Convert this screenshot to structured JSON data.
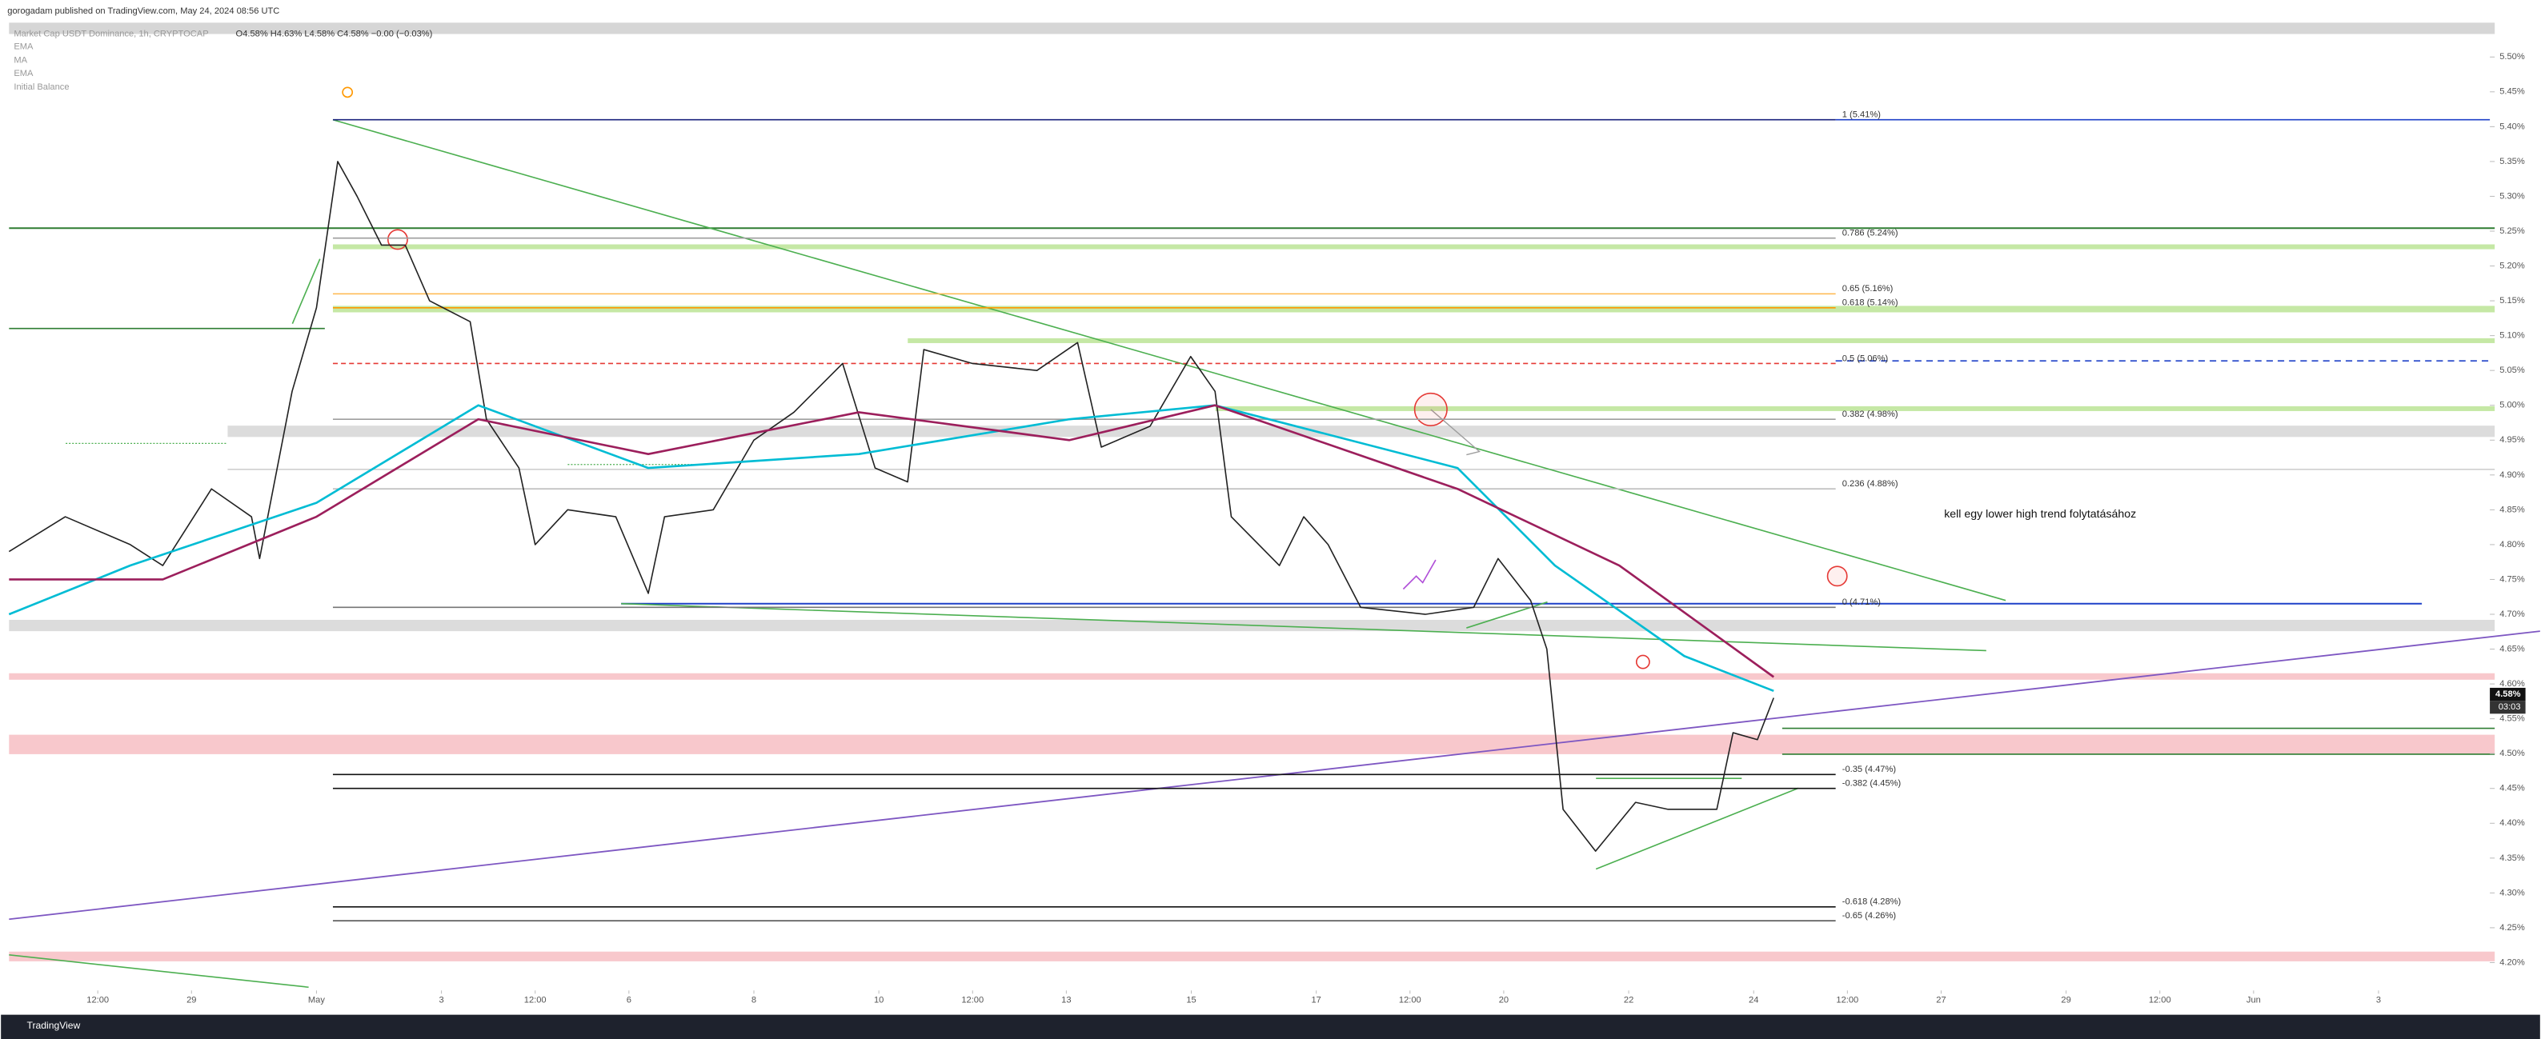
{
  "chart_data": {
    "type": "line",
    "attribution": "gorogadam published on TradingView.com, May 24, 2024 08:56 UTC",
    "title": "Market Cap USDT Dominance, 1h, CRYPTOCAP",
    "ohlc": "O4.58% H4.63% L4.58% C4.58% −0.00 (−0.03%)",
    "legend_items": [
      "EMA",
      "MA",
      "EMA",
      "Initial Balance"
    ],
    "annotation": "kell egy lower high trend folytatásához",
    "last_price_label": "4.58%",
    "countdown": "03:03",
    "footer": "TradingView",
    "series": [
      {
        "color": "#222222",
        "x": [
          -4.92,
          -4.02,
          -2.98,
          -2.46,
          -1.68,
          -1.04,
          -0.91,
          -0.39,
          0,
          0.34,
          0.65,
          1.04,
          1.42,
          1.81,
          2.46,
          2.72,
          3.24,
          3.5,
          4.02,
          4.79,
          5.31,
          5.57,
          6.35,
          7,
          7.64,
          8.42,
          8.94,
          9.46,
          9.72,
          10.5,
          11.53,
          12.18,
          12.56,
          13.34,
          13.99,
          14.38,
          14.64,
          15.41,
          15.8,
          16.19,
          16.71,
          17.75,
          18.52,
          18.91,
          19.43,
          19.69,
          19.95,
          20.47,
          21.11,
          21.63,
          22.41,
          22.67,
          23.06,
          23.32
        ],
        "values": [
          4.79,
          4.84,
          4.8,
          4.77,
          4.88,
          4.84,
          4.78,
          5.02,
          5.14,
          5.35,
          5.3,
          5.23,
          5.23,
          5.15,
          5.12,
          4.98,
          4.91,
          4.8,
          4.85,
          4.84,
          4.73,
          4.84,
          4.85,
          4.95,
          4.99,
          5.06,
          4.91,
          4.89,
          5.08,
          5.06,
          5.05,
          5.09,
          4.94,
          4.97,
          5.07,
          5.02,
          4.84,
          4.77,
          4.84,
          4.8,
          4.71,
          4.7,
          4.71,
          4.78,
          4.72,
          4.65,
          4.42,
          4.36,
          4.43,
          4.42,
          4.42,
          4.53,
          4.52,
          4.58
        ]
      },
      {
        "color": "#00bcd4",
        "x": [
          -4.92,
          -2.98,
          0,
          2.59,
          5.31,
          8.68,
          12.05,
          14.38,
          18.26,
          19.82,
          21.89,
          23.32
        ],
        "values": [
          4.7,
          4.77,
          4.86,
          5.0,
          4.91,
          4.93,
          4.98,
          5.0,
          4.91,
          4.77,
          4.64,
          4.59
        ]
      },
      {
        "color": "#9c1f5c",
        "x": [
          -4.92,
          -2.46,
          0,
          2.59,
          5.31,
          8.68,
          12.05,
          14.38,
          18.26,
          20.85,
          23.32
        ],
        "values": [
          4.75,
          4.75,
          4.84,
          4.98,
          4.93,
          4.99,
          4.95,
          5.0,
          4.88,
          4.77,
          4.61
        ]
      }
    ],
    "fib_levels": [
      {
        "label": "1 (5.41%)",
        "value": 5.41,
        "color": "#1a237e"
      },
      {
        "label": "0.786 (5.24%)",
        "value": 5.24,
        "color": "#9e9e9e"
      },
      {
        "label": "0.65 (5.16%)",
        "value": 5.16,
        "color": "#ffb74d"
      },
      {
        "label": "0.618 (5.14%)",
        "value": 5.14,
        "color": "#ff9800"
      },
      {
        "label": "0.5 (5.06%)",
        "value": 5.06,
        "color": "#e53935"
      },
      {
        "label": "0.382 (4.98%)",
        "value": 4.98,
        "color": "#9e9e9e"
      },
      {
        "label": "0.236 (4.88%)",
        "value": 4.88,
        "color": "#bdbdbd"
      },
      {
        "label": "0 (4.71%)",
        "value": 4.71,
        "color": "#757575"
      },
      {
        "label": "-0.35 (4.47%)",
        "value": 4.47,
        "color": "#111111"
      },
      {
        "label": "-0.382 (4.45%)",
        "value": 4.45,
        "color": "#111111"
      },
      {
        "label": "-0.618 (4.28%)",
        "value": 4.28,
        "color": "#111111"
      },
      {
        "label": "-0.65 (4.26%)",
        "value": 4.26,
        "color": "#555555"
      }
    ],
    "xlim": [
      -4.92,
      34.6
    ],
    "xticks": [
      {
        "value": -3.5,
        "label": "12:00"
      },
      {
        "value": -2,
        "label": "29"
      },
      {
        "value": 0,
        "label": "May"
      },
      {
        "value": 2,
        "label": "3"
      },
      {
        "value": 3.5,
        "label": "12:00"
      },
      {
        "value": 5,
        "label": "6"
      },
      {
        "value": 7,
        "label": "8"
      },
      {
        "value": 9,
        "label": "10"
      },
      {
        "value": 10.5,
        "label": "12:00"
      },
      {
        "value": 12,
        "label": "13"
      },
      {
        "value": 14,
        "label": "15"
      },
      {
        "value": 16,
        "label": "17"
      },
      {
        "value": 17.5,
        "label": "12:00"
      },
      {
        "value": 19,
        "label": "20"
      },
      {
        "value": 21,
        "label": "22"
      },
      {
        "value": 23,
        "label": "24"
      },
      {
        "value": 24.5,
        "label": "12:00"
      },
      {
        "value": 26,
        "label": "27"
      },
      {
        "value": 28,
        "label": "29"
      },
      {
        "value": 29.5,
        "label": "12:00"
      },
      {
        "value": 31,
        "label": "Jun"
      },
      {
        "value": 33,
        "label": "3"
      }
    ],
    "ylim": [
      4.16,
      5.54
    ],
    "yticks": [
      {
        "value": 4.2,
        "label": "4.20%"
      },
      {
        "value": 4.25,
        "label": "4.25%"
      },
      {
        "value": 4.3,
        "label": "4.30%"
      },
      {
        "value": 4.35,
        "label": "4.35%"
      },
      {
        "value": 4.4,
        "label": "4.40%"
      },
      {
        "value": 4.45,
        "label": "4.45%"
      },
      {
        "value": 4.5,
        "label": "4.50%"
      },
      {
        "value": 4.55,
        "label": "4.55%"
      },
      {
        "value": 4.6,
        "label": "4.60%"
      },
      {
        "value": 4.65,
        "label": "4.65%"
      },
      {
        "value": 4.7,
        "label": "4.70%"
      },
      {
        "value": 4.75,
        "label": "4.75%"
      },
      {
        "value": 4.8,
        "label": "4.80%"
      },
      {
        "value": 4.85,
        "label": "4.85%"
      },
      {
        "value": 4.9,
        "label": "4.90%"
      },
      {
        "value": 4.95,
        "label": "4.95%"
      },
      {
        "value": 5.0,
        "label": "5.00%"
      },
      {
        "value": 5.05,
        "label": "5.05%"
      },
      {
        "value": 5.1,
        "label": "5.10%"
      },
      {
        "value": 5.15,
        "label": "5.15%"
      },
      {
        "value": 5.2,
        "label": "5.20%"
      },
      {
        "value": 5.25,
        "label": "5.25%"
      },
      {
        "value": 5.3,
        "label": "5.30%"
      },
      {
        "value": 5.35,
        "label": "5.35%"
      },
      {
        "value": 5.4,
        "label": "5.40%"
      },
      {
        "value": 5.45,
        "label": "5.45%"
      },
      {
        "value": 5.5,
        "label": "5.50%"
      }
    ]
  }
}
